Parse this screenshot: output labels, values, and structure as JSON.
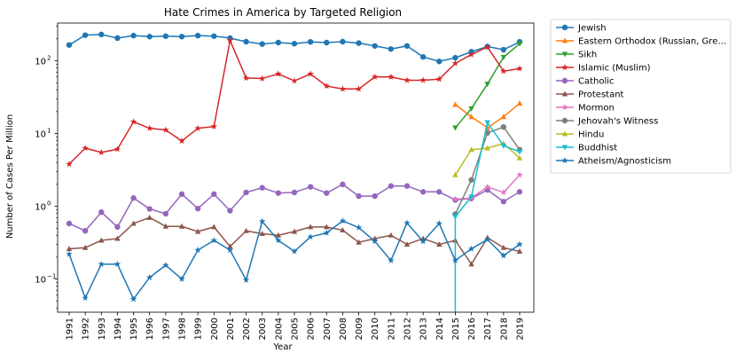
{
  "chart_data": {
    "type": "line",
    "title": "Hate Crimes in America by Targeted Religion",
    "xlabel": "Year",
    "ylabel": "Number of Cases Per Million",
    "yscale": "log",
    "ylim": [
      0.035,
      330
    ],
    "x": [
      "1991",
      "1992",
      "1993",
      "1994",
      "1995",
      "1996",
      "1997",
      "1998",
      "1999",
      "2000",
      "2001",
      "2002",
      "2003",
      "2004",
      "2005",
      "2006",
      "2007",
      "2008",
      "2009",
      "2010",
      "2011",
      "2012",
      "2013",
      "2014",
      "2015",
      "2016",
      "2017",
      "2018",
      "2019"
    ],
    "y_ticks": [
      {
        "value": 0.1,
        "base": "10",
        "exp": "−1"
      },
      {
        "value": 1,
        "base": "10",
        "exp": "0"
      },
      {
        "value": 10,
        "base": "10",
        "exp": "1"
      },
      {
        "value": 100,
        "base": "10",
        "exp": "2"
      }
    ],
    "legend_position": "outside-right",
    "series": [
      {
        "name": "Jewish",
        "color": "#1f77b4",
        "marker": "circle",
        "values": [
          165,
          225,
          230,
          205,
          222,
          215,
          218,
          215,
          222,
          218,
          205,
          183,
          170,
          178,
          172,
          182,
          178,
          183,
          175,
          160,
          145,
          160,
          113,
          98,
          110,
          133,
          157,
          142,
          182
        ]
      },
      {
        "name": "Eastern Orthodox (Russian, Gre…",
        "color": "#ff7f0e",
        "marker": "triangle-up",
        "values": [
          null,
          null,
          null,
          null,
          null,
          null,
          null,
          null,
          null,
          null,
          null,
          null,
          null,
          null,
          null,
          null,
          null,
          null,
          null,
          null,
          null,
          null,
          null,
          null,
          25,
          17,
          12,
          17,
          26
        ]
      },
      {
        "name": "Sikh",
        "color": "#2ca02c",
        "marker": "triangle-down",
        "values": [
          null,
          null,
          null,
          null,
          null,
          null,
          null,
          null,
          null,
          null,
          null,
          null,
          null,
          null,
          null,
          null,
          null,
          null,
          null,
          null,
          null,
          null,
          null,
          null,
          12,
          22,
          48,
          112,
          172
        ]
      },
      {
        "name": "Islamic (Muslim)",
        "color": "#d62728",
        "marker": "star",
        "values": [
          3.8,
          6.3,
          5.5,
          6.1,
          14.5,
          11.8,
          11.2,
          7.9,
          11.8,
          12.5,
          190,
          58,
          57,
          66,
          53,
          66,
          45,
          41,
          41,
          60,
          60,
          54,
          54,
          56,
          92,
          122,
          155,
          72,
          78
        ]
      },
      {
        "name": "Catholic",
        "color": "#9467bd",
        "marker": "circle",
        "values": [
          0.58,
          0.46,
          0.83,
          0.52,
          1.3,
          0.92,
          0.79,
          1.47,
          0.93,
          1.47,
          0.87,
          1.55,
          1.8,
          1.52,
          1.55,
          1.85,
          1.52,
          2.0,
          1.38,
          1.38,
          1.9,
          1.9,
          1.58,
          1.58,
          1.22,
          1.28,
          1.68,
          1.16,
          1.58
        ]
      },
      {
        "name": "Protestant",
        "color": "#8c564b",
        "marker": "triangle-up",
        "values": [
          0.26,
          0.27,
          0.34,
          0.36,
          0.58,
          0.7,
          0.53,
          0.53,
          0.45,
          0.52,
          0.28,
          0.46,
          0.42,
          0.4,
          0.45,
          0.52,
          0.52,
          0.47,
          0.32,
          0.36,
          0.4,
          0.3,
          0.36,
          0.3,
          0.34,
          0.16,
          0.37,
          0.27,
          0.24
        ]
      },
      {
        "name": "Mormon",
        "color": "#e377c2",
        "marker": "star",
        "values": [
          null,
          null,
          null,
          null,
          null,
          null,
          null,
          null,
          null,
          null,
          null,
          null,
          null,
          null,
          null,
          null,
          null,
          null,
          null,
          null,
          null,
          null,
          null,
          null,
          1.25,
          1.3,
          1.85,
          1.55,
          2.7
        ]
      },
      {
        "name": "Jehovah's Witness",
        "color": "#7f7f7f",
        "marker": "circle",
        "values": [
          null,
          null,
          null,
          null,
          null,
          null,
          null,
          null,
          null,
          null,
          null,
          null,
          null,
          null,
          null,
          null,
          null,
          null,
          null,
          null,
          null,
          null,
          null,
          null,
          0.78,
          2.3,
          10.2,
          12.3,
          6.0
        ]
      },
      {
        "name": "Hindu",
        "color": "#bcbd22",
        "marker": "triangle-up",
        "values": [
          null,
          null,
          null,
          null,
          null,
          null,
          null,
          null,
          null,
          null,
          null,
          null,
          null,
          null,
          null,
          null,
          null,
          null,
          null,
          null,
          null,
          null,
          null,
          null,
          2.7,
          6.0,
          6.3,
          7.3,
          4.6
        ]
      },
      {
        "name": "Buddhist",
        "color": "#17becf",
        "marker": "triangle-down",
        "values": [
          null,
          null,
          null,
          null,
          null,
          null,
          null,
          null,
          null,
          null,
          null,
          null,
          null,
          null,
          null,
          null,
          null,
          null,
          null,
          null,
          null,
          null,
          null,
          null,
          0.72,
          1.35,
          14.2,
          6.8,
          5.6
        ]
      },
      {
        "name": "Atheism/Agnosticism",
        "color": "#1f77b4",
        "marker": "star",
        "values": [
          0.22,
          0.055,
          0.16,
          0.16,
          0.053,
          0.105,
          0.155,
          0.1,
          0.25,
          0.34,
          0.25,
          0.097,
          0.62,
          0.34,
          0.24,
          0.38,
          0.43,
          0.63,
          0.51,
          0.33,
          0.18,
          0.59,
          0.33,
          0.58,
          0.18,
          0.26,
          0.35,
          0.21,
          0.3
        ]
      }
    ]
  }
}
